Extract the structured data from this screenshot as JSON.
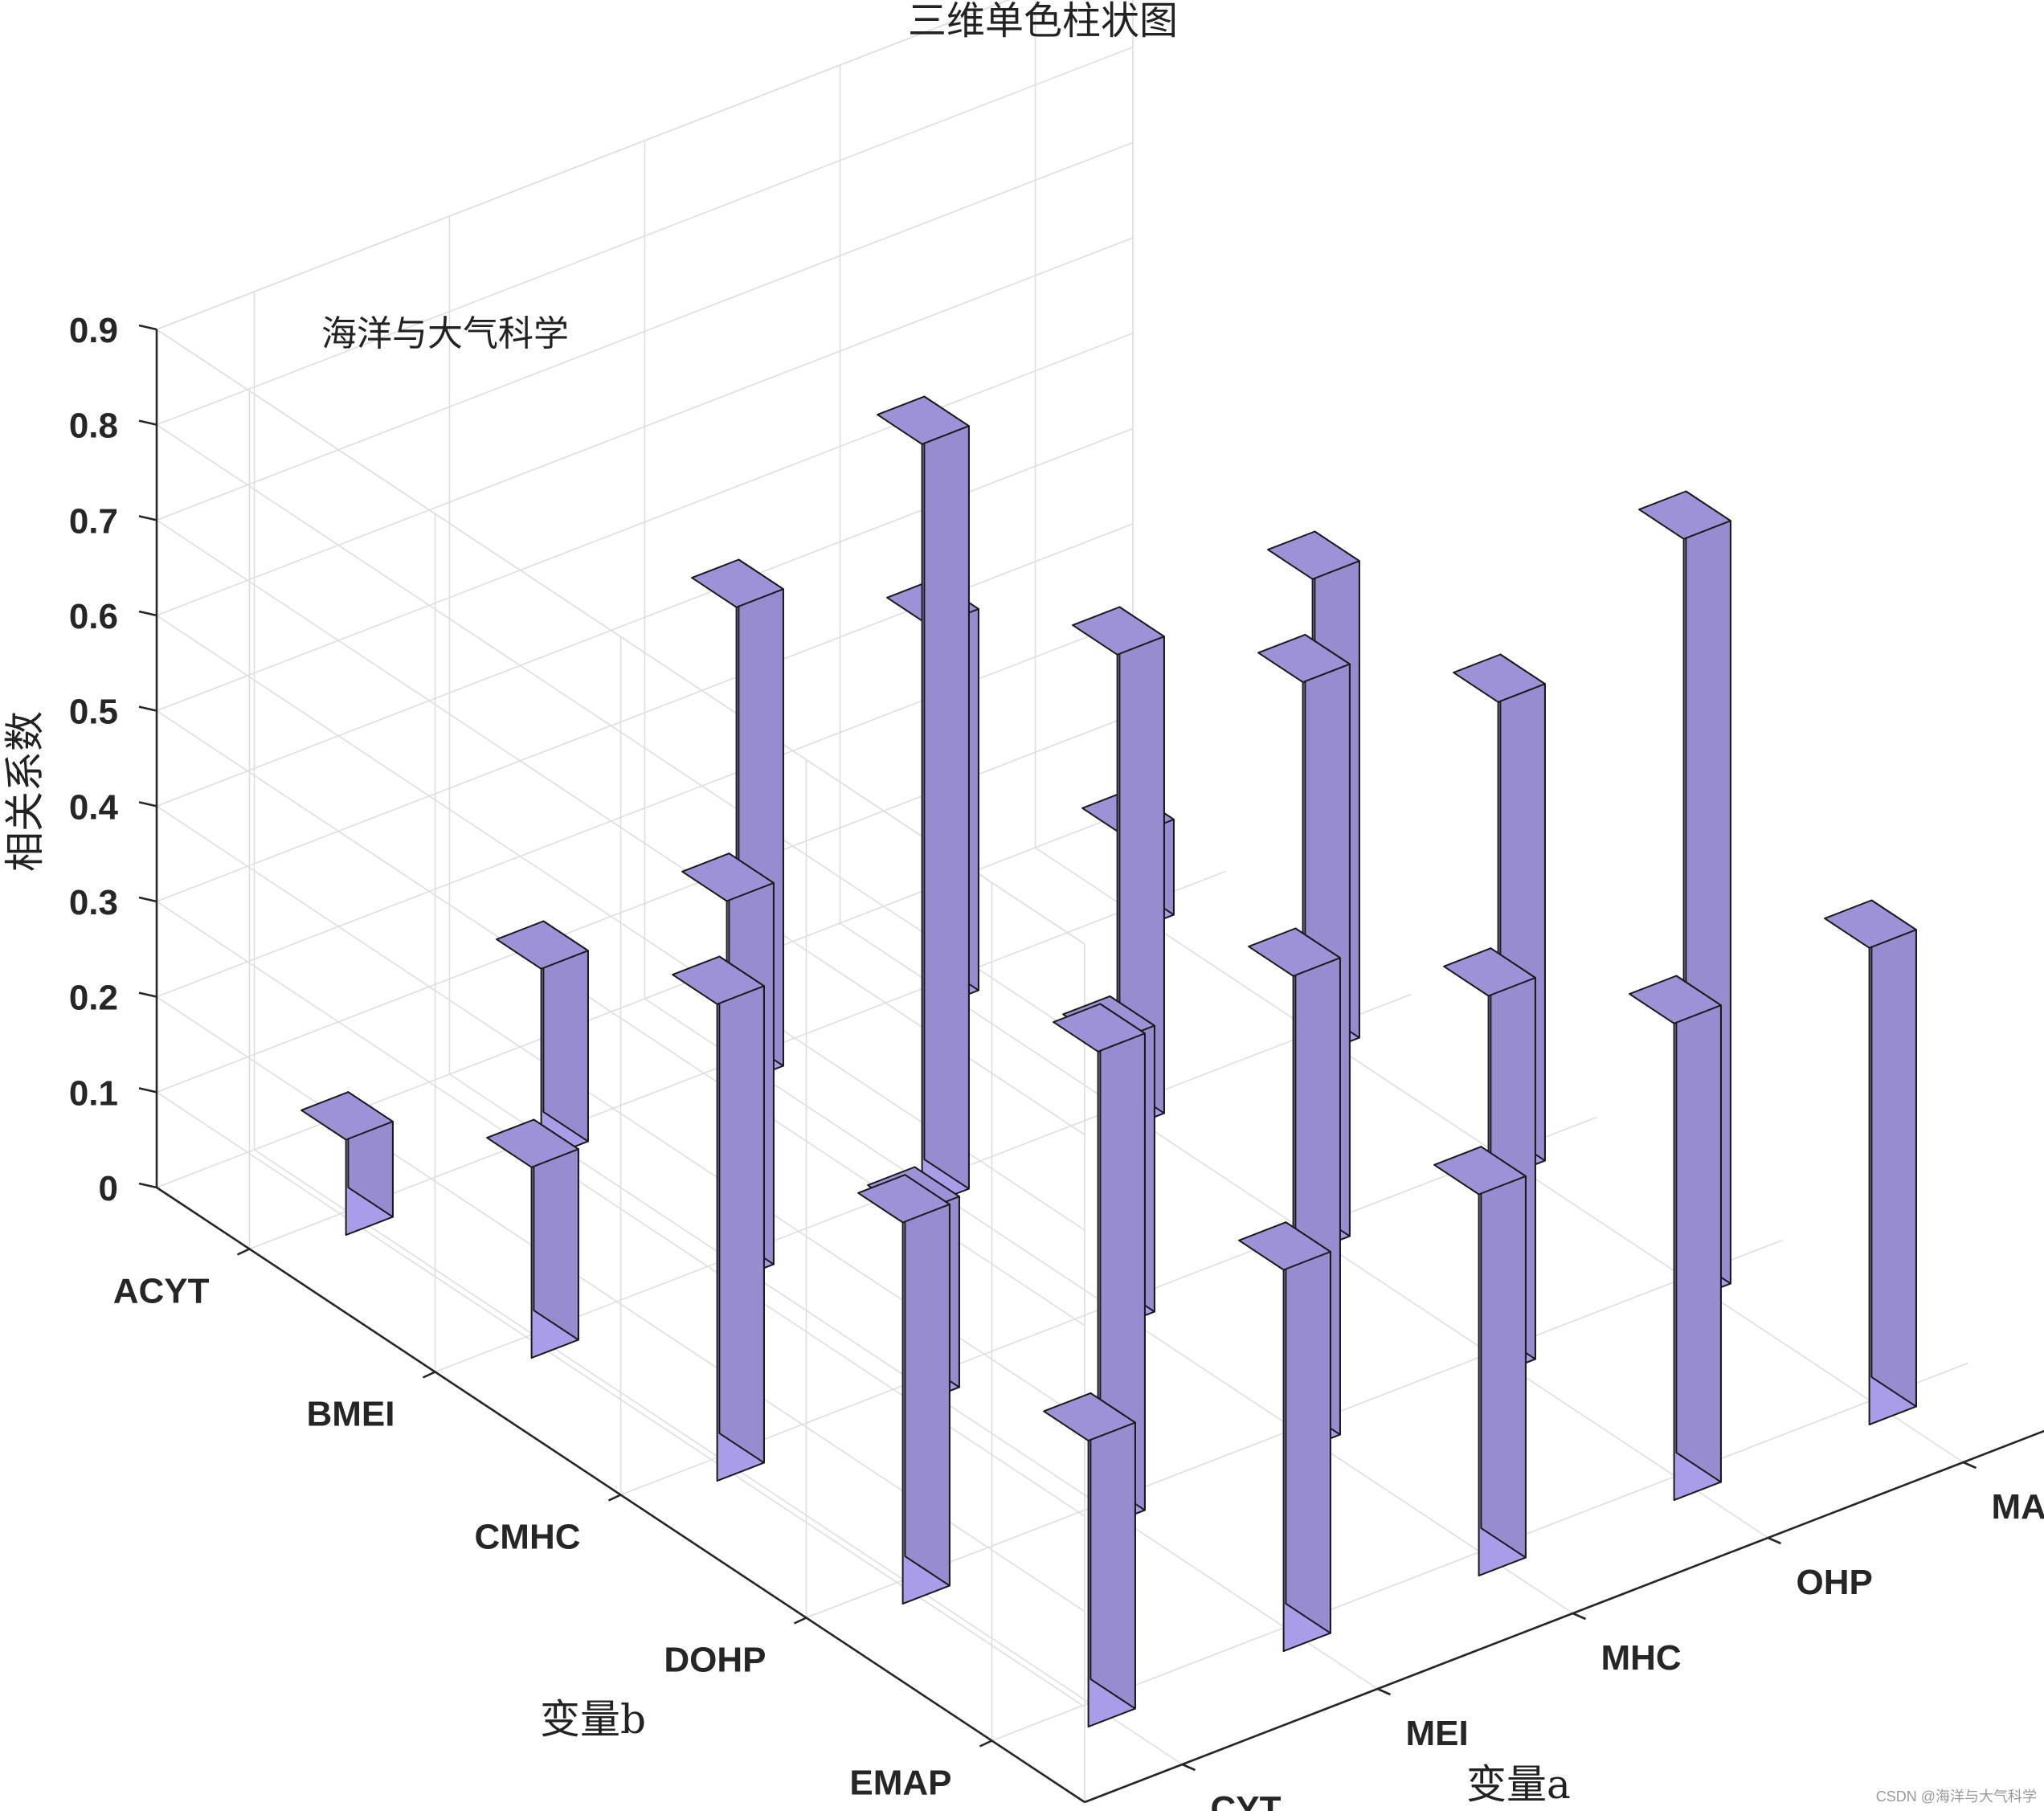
{
  "chart_data": {
    "type": "bar3d",
    "title": "三维单色柱状图",
    "annotation": "海洋与大气科学",
    "xlabel": "变量a",
    "ylabel": "变量b",
    "zlabel": "相关系数",
    "x_categories": [
      "CYT",
      "MEI",
      "MHC",
      "OHP",
      "MAP"
    ],
    "y_categories": [
      "ACYT",
      "BMEI",
      "CMHC",
      "DOHP",
      "EMAP"
    ],
    "zlim": [
      0,
      0.9
    ],
    "zticks": [
      "0",
      "0.1",
      "0.2",
      "0.3",
      "0.4",
      "0.5",
      "0.6",
      "0.7",
      "0.8",
      "0.9"
    ],
    "grid": true,
    "bar_color": "#a99ce8",
    "values": [
      [
        0.1,
        0.2,
        0.5,
        0.4,
        0.1
      ],
      [
        0.2,
        0.4,
        0.8,
        0.5,
        0.5
      ],
      [
        0.5,
        0.2,
        0.3,
        0.6,
        0.5
      ],
      [
        0.4,
        0.5,
        0.5,
        0.4,
        0.8
      ],
      [
        0.3,
        0.4,
        0.4,
        0.5,
        0.5
      ]
    ]
  },
  "watermark": "CSDN @海洋与大气科学"
}
